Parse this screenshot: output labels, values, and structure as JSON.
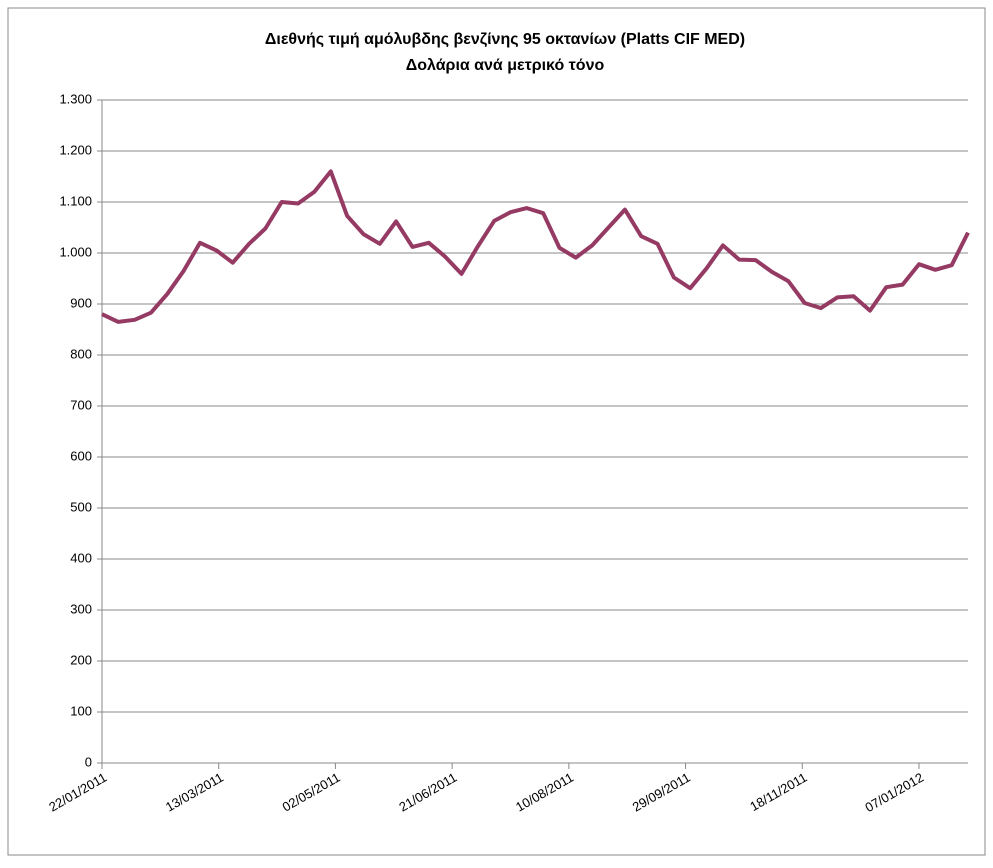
{
  "chart_data": {
    "type": "line",
    "title": "Διεθνής τιμή αμόλυβδης βενζίνης 95 οκτανίων (Platts CIF MED)",
    "subtitle": "Δολάρια ανά μετρικό τόνο",
    "x": [
      "22/01/2011",
      "29/01/2011",
      "05/02/2011",
      "12/02/2011",
      "19/02/2011",
      "26/02/2011",
      "05/03/2011",
      "12/03/2011",
      "19/03/2011",
      "26/03/2011",
      "02/04/2011",
      "09/04/2011",
      "16/04/2011",
      "23/04/2011",
      "30/04/2011",
      "07/05/2011",
      "14/05/2011",
      "21/05/2011",
      "28/05/2011",
      "04/06/2011",
      "11/06/2011",
      "18/06/2011",
      "25/06/2011",
      "02/07/2011",
      "09/07/2011",
      "16/07/2011",
      "23/07/2011",
      "30/07/2011",
      "06/08/2011",
      "13/08/2011",
      "20/08/2011",
      "27/08/2011",
      "03/09/2011",
      "10/09/2011",
      "17/09/2011",
      "24/09/2011",
      "01/10/2011",
      "08/10/2011",
      "15/10/2011",
      "22/10/2011",
      "29/10/2011",
      "05/11/2011",
      "12/11/2011",
      "19/11/2011",
      "26/11/2011",
      "03/12/2011",
      "10/12/2011",
      "17/12/2011",
      "24/12/2011",
      "31/12/2011",
      "07/01/2012",
      "14/01/2012",
      "21/01/2012",
      "28/01/2012"
    ],
    "series": [
      {
        "name": "Platts CIF MED",
        "color": "#953a63",
        "values": [
          880,
          865,
          869,
          883,
          920,
          965,
          1020,
          1005,
          981,
          1018,
          1048,
          1100,
          1097,
          1120,
          1160,
          1073,
          1037,
          1018,
          1062,
          1012,
          1020,
          993,
          959,
          1013,
          1063,
          1080,
          1088,
          1078,
          1010,
          991,
          1015,
          1050,
          1085,
          1033,
          1018,
          952,
          931,
          970,
          1015,
          987,
          986,
          963,
          945,
          902,
          892,
          913,
          915,
          887,
          933,
          938,
          978,
          967,
          976,
          1040
        ]
      }
    ],
    "xlim": [
      "22/01/2011",
      "28/01/2012"
    ],
    "xticks": [
      "22/01/2011",
      "13/03/2011",
      "02/05/2011",
      "21/06/2011",
      "10/08/2011",
      "29/09/2011",
      "18/11/2011",
      "07/01/2012"
    ],
    "ylim": [
      0,
      1300
    ],
    "yticks": [
      0,
      100,
      200,
      300,
      400,
      500,
      600,
      700,
      800,
      900,
      {
        "value": 1000,
        "label": "1.000"
      },
      {
        "value": 1100,
        "label": "1.100"
      },
      {
        "value": 1200,
        "label": "1.200"
      },
      {
        "value": 1300,
        "label": "1.300"
      }
    ],
    "grid": true
  }
}
